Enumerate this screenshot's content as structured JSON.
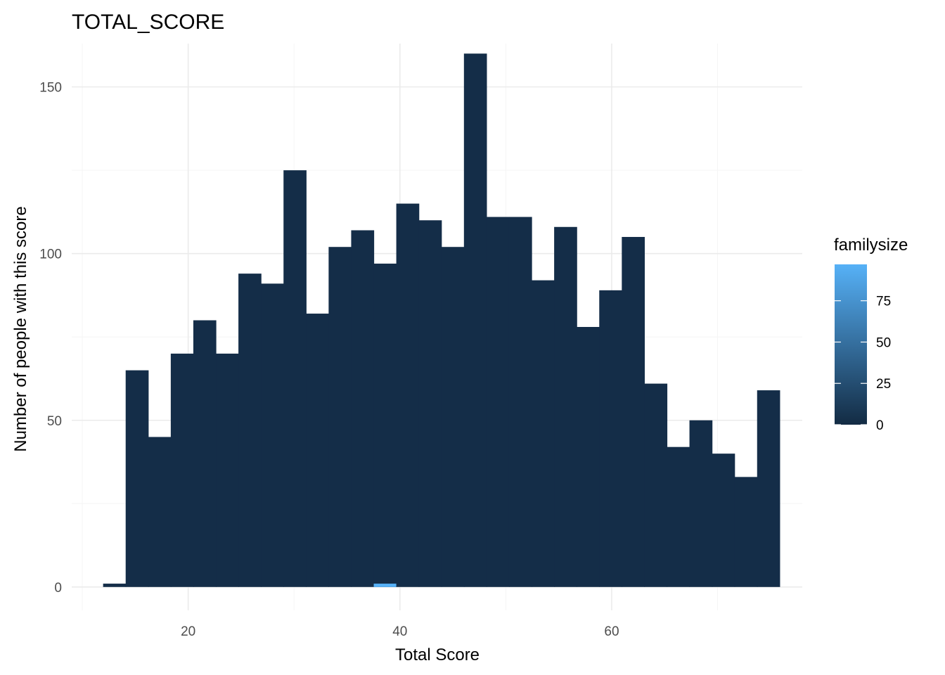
{
  "chart_data": {
    "type": "bar",
    "subtype": "histogram",
    "title": "TOTAL_SCORE",
    "xlabel": "Total Score",
    "ylabel": "Number of people with this score",
    "xlim": [
      9,
      78
    ],
    "ylim": [
      -7,
      163
    ],
    "x_ticks": [
      20,
      40,
      60
    ],
    "y_ticks": [
      0,
      50,
      100,
      150
    ],
    "grid": true,
    "bin_width": 2.13,
    "bins": [
      {
        "x": 13.03,
        "count": 1
      },
      {
        "x": 15.16,
        "count": 65
      },
      {
        "x": 17.29,
        "count": 45
      },
      {
        "x": 19.42,
        "count": 70
      },
      {
        "x": 21.55,
        "count": 80
      },
      {
        "x": 23.68,
        "count": 70
      },
      {
        "x": 25.81,
        "count": 94
      },
      {
        "x": 27.94,
        "count": 91
      },
      {
        "x": 30.07,
        "count": 125
      },
      {
        "x": 32.2,
        "count": 82
      },
      {
        "x": 34.33,
        "count": 102
      },
      {
        "x": 36.46,
        "count": 107
      },
      {
        "x": 38.59,
        "count": 97
      },
      {
        "x": 40.72,
        "count": 115
      },
      {
        "x": 42.85,
        "count": 110
      },
      {
        "x": 44.98,
        "count": 102
      },
      {
        "x": 47.11,
        "count": 160
      },
      {
        "x": 49.24,
        "count": 111
      },
      {
        "x": 51.37,
        "count": 111
      },
      {
        "x": 53.5,
        "count": 92
      },
      {
        "x": 55.63,
        "count": 108
      },
      {
        "x": 57.76,
        "count": 78
      },
      {
        "x": 59.89,
        "count": 89
      },
      {
        "x": 62.02,
        "count": 105
      },
      {
        "x": 64.15,
        "count": 61
      },
      {
        "x": 66.28,
        "count": 42
      },
      {
        "x": 68.41,
        "count": 50
      },
      {
        "x": 70.54,
        "count": 40
      },
      {
        "x": 72.67,
        "count": 33
      },
      {
        "x": 74.8,
        "count": 59
      }
    ],
    "highlight": {
      "x": 38.59,
      "count": 1
    },
    "legend": {
      "title": "familysize",
      "type": "colorbar",
      "placement": "right",
      "range": [
        0,
        97
      ],
      "ticks": [
        0,
        25,
        50,
        75
      ],
      "color_low": "#132b43",
      "color_high": "#56b1f7"
    },
    "colors": {
      "bar": "#142d48",
      "highlight": "#56b1f7",
      "grid_major": "#ebebeb",
      "grid_minor": "#f5f5f5"
    }
  }
}
